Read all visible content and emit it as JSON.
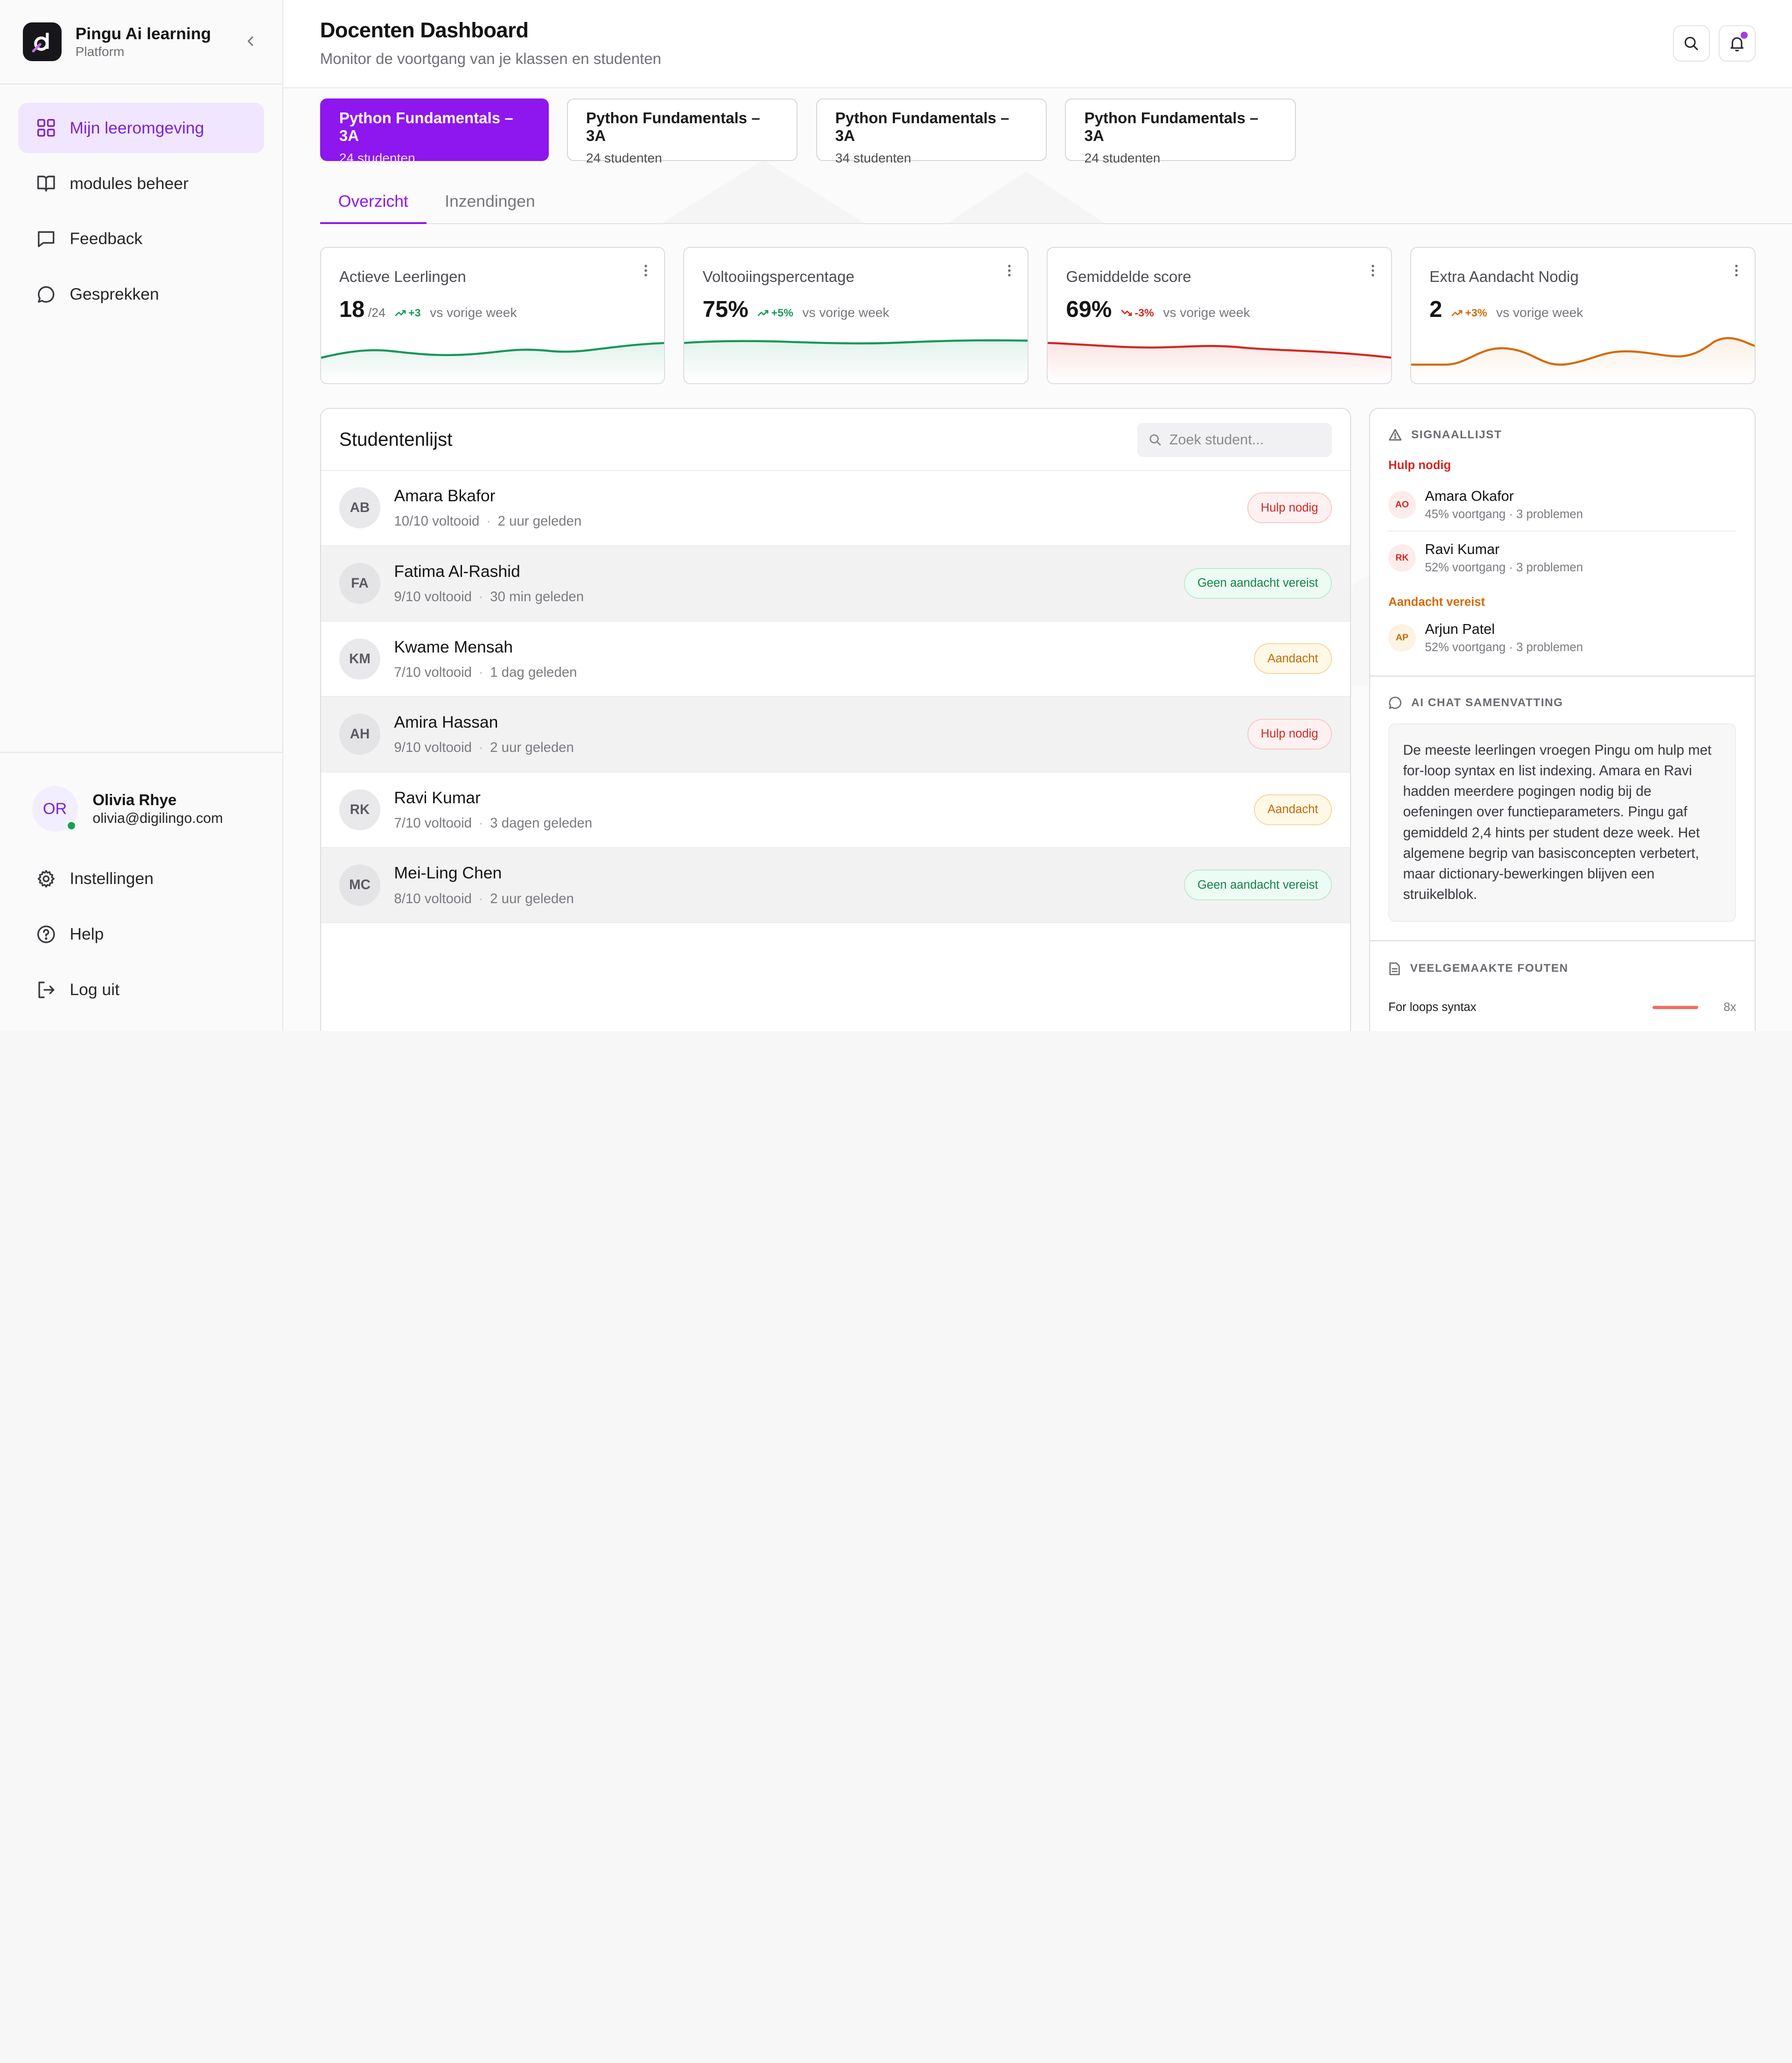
{
  "brand": {
    "name": "Pingu Ai learning",
    "sub": "Platform"
  },
  "nav": [
    {
      "label": "Mijn leeromgeving",
      "icon": "grid-icon",
      "active": true
    },
    {
      "label": "modules beheer",
      "icon": "book-icon",
      "active": false
    },
    {
      "label": "Feedback",
      "icon": "message-square-icon",
      "active": false
    },
    {
      "label": "Gesprekken",
      "icon": "chat-bubble-icon",
      "active": false
    }
  ],
  "user": {
    "initials": "OR",
    "name": "Olivia Rhye",
    "email": "olivia@digilingo.com"
  },
  "bottom_nav": [
    {
      "label": "Instellingen",
      "icon": "gear-icon"
    },
    {
      "label": "Help",
      "icon": "help-circle-icon"
    },
    {
      "label": "Log uit",
      "icon": "logout-icon"
    }
  ],
  "header": {
    "title": "Docenten Dashboard",
    "subtitle": "Monitor de voortgang van je klassen en studenten"
  },
  "classes": [
    {
      "name": "Python Fundamentals – 3A",
      "count": "24 studenten",
      "active": true
    },
    {
      "name": "Python Fundamentals – 3A",
      "count": "24 studenten",
      "active": false
    },
    {
      "name": "Python Fundamentals – 3A",
      "count": "34 studenten",
      "active": false
    },
    {
      "name": "Python Fundamentals – 3A",
      "count": "24 studenten",
      "active": false
    }
  ],
  "view_tabs": [
    {
      "label": "Overzicht",
      "active": true
    },
    {
      "label": "Inzendingen",
      "active": false
    }
  ],
  "kpis": [
    {
      "label": "Actieve Leerlingen",
      "value": "18",
      "total": "/24",
      "delta": "+3",
      "trend": "up",
      "vs": "vs vorige week",
      "color": "#16975c"
    },
    {
      "label": "Voltooiingspercentage",
      "value": "75%",
      "total": "",
      "delta": "+5%",
      "trend": "up",
      "vs": "vs vorige week",
      "color": "#16975c"
    },
    {
      "label": "Gemiddelde score",
      "value": "69%",
      "total": "",
      "delta": "-3%",
      "trend": "down",
      "vs": "vs vorige week",
      "color": "#d4261f"
    },
    {
      "label": "Extra Aandacht Nodig",
      "value": "2",
      "total": "",
      "delta": "+3%",
      "trend": "up",
      "vs": "vs vorige week",
      "color": "#d56a06"
    }
  ],
  "students": {
    "title": "Studentenlijst",
    "search_placeholder": "Zoek student...",
    "rows": [
      {
        "initials": "AB",
        "name": "Amara Bkafor",
        "progress": "10/10 voltooid",
        "time": "2 uur geleden",
        "status": "Hulp nodig",
        "tone": "red"
      },
      {
        "initials": "FA",
        "name": "Fatima Al-Rashid",
        "progress": "9/10 voltooid",
        "time": "30 min geleden",
        "status": "Geen aandacht vereist",
        "tone": "green"
      },
      {
        "initials": "KM",
        "name": "Kwame Mensah",
        "progress": "7/10 voltooid",
        "time": "1 dag geleden",
        "status": "Aandacht",
        "tone": "orange"
      },
      {
        "initials": "AH",
        "name": "Amira Hassan",
        "progress": "9/10 voltooid",
        "time": "2 uur geleden",
        "status": "Hulp nodig",
        "tone": "red"
      },
      {
        "initials": "RK",
        "name": "Ravi Kumar",
        "progress": "7/10 voltooid",
        "time": "3 dagen geleden",
        "status": "Aandacht",
        "tone": "orange"
      },
      {
        "initials": "MC",
        "name": "Mei-Ling Chen",
        "progress": "8/10 voltooid",
        "time": "2 uur geleden",
        "status": "Geen aandacht vereist",
        "tone": "green"
      }
    ]
  },
  "signals": {
    "title": "SIGNAALLIJST",
    "help_label": "Hulp nodig",
    "help_items": [
      {
        "initials": "AO",
        "name": "Amara Okafor",
        "meta": "45% voortgang · 3 problemen"
      },
      {
        "initials": "RK",
        "name": "Ravi Kumar",
        "meta": "52% voortgang · 3 problemen"
      }
    ],
    "attention_label": "Aandacht vereist",
    "attention_items": [
      {
        "initials": "AP",
        "name": "Arjun Patel",
        "meta": "52% voortgang · 3 problemen"
      }
    ]
  },
  "ai_summary": {
    "title": "AI CHAT SAMENVATTING",
    "text": "De meeste leerlingen vroegen Pingu om hulp met for-loop syntax en list indexing. Amara en Ravi hadden meerdere pogingen nodig bij de oefeningen over functieparameters. Pingu gaf gemiddeld 2,4 hints per student deze week. Het algemene begrip van basisconcepten verbetert, maar dictionary-bewerkingen blijven een struikelblok."
  },
  "errors": {
    "title": "VEELGEMAAKTE FOUTEN",
    "items": [
      {
        "label": "For loops syntax",
        "count": "8x"
      }
    ]
  },
  "colors": {
    "accent": "#8e16ee",
    "accent_soft": "#f1e6ff",
    "red": "#d4261f",
    "green": "#16975c",
    "orange": "#d56a06"
  }
}
